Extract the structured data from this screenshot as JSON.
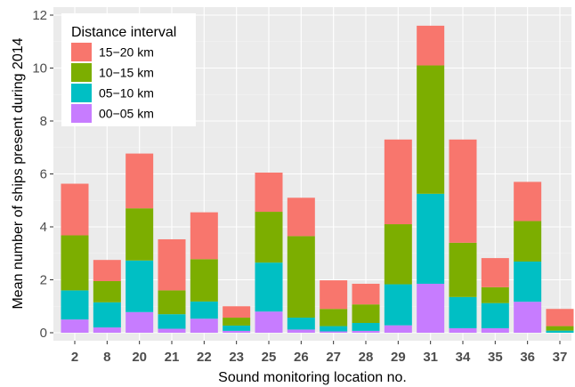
{
  "chart_data": {
    "type": "bar",
    "stacked": true,
    "xlabel": "Sound monitoring location no.",
    "ylabel": "Mean number of ships present during 2014",
    "ylim": [
      0,
      12
    ],
    "y_ticks": [
      0,
      2,
      4,
      6,
      8,
      10,
      12
    ],
    "grid": true,
    "legend_placement": "top-left",
    "legend_title": "Distance interval",
    "categories": [
      "2",
      "8",
      "20",
      "21",
      "22",
      "23",
      "25",
      "26",
      "27",
      "28",
      "29",
      "31",
      "34",
      "35",
      "36",
      "37"
    ],
    "series": [
      {
        "name": "00−05 km",
        "color": "#C77CFF",
        "values": [
          0.5,
          0.2,
          0.78,
          0.15,
          0.53,
          0.07,
          0.8,
          0.12,
          0.05,
          0.07,
          0.28,
          1.85,
          0.17,
          0.17,
          1.17,
          0.0
        ]
      },
      {
        "name": "05−10 km",
        "color": "#00BFC4",
        "values": [
          1.1,
          0.95,
          1.95,
          0.55,
          0.65,
          0.2,
          1.85,
          0.45,
          0.2,
          0.3,
          1.55,
          3.4,
          1.18,
          0.95,
          1.52,
          0.08
        ]
      },
      {
        "name": "10−15 km",
        "color": "#7CAE00",
        "values": [
          2.08,
          0.8,
          1.97,
          0.9,
          1.6,
          0.3,
          1.92,
          3.08,
          0.65,
          0.7,
          2.27,
          4.85,
          2.05,
          0.6,
          1.53,
          0.17
        ]
      },
      {
        "name": "15−20 km",
        "color": "#F8766D",
        "values": [
          1.95,
          0.8,
          2.07,
          1.93,
          1.77,
          0.43,
          1.48,
          1.45,
          1.08,
          0.78,
          3.2,
          1.5,
          3.9,
          1.1,
          1.48,
          0.65
        ]
      }
    ],
    "legend_order": [
      "15−20 km",
      "10−15 km",
      "05−10 km",
      "00−05 km"
    ]
  },
  "colors": {
    "panel_background": "#EBEBEB",
    "grid_major": "#FFFFFF"
  }
}
